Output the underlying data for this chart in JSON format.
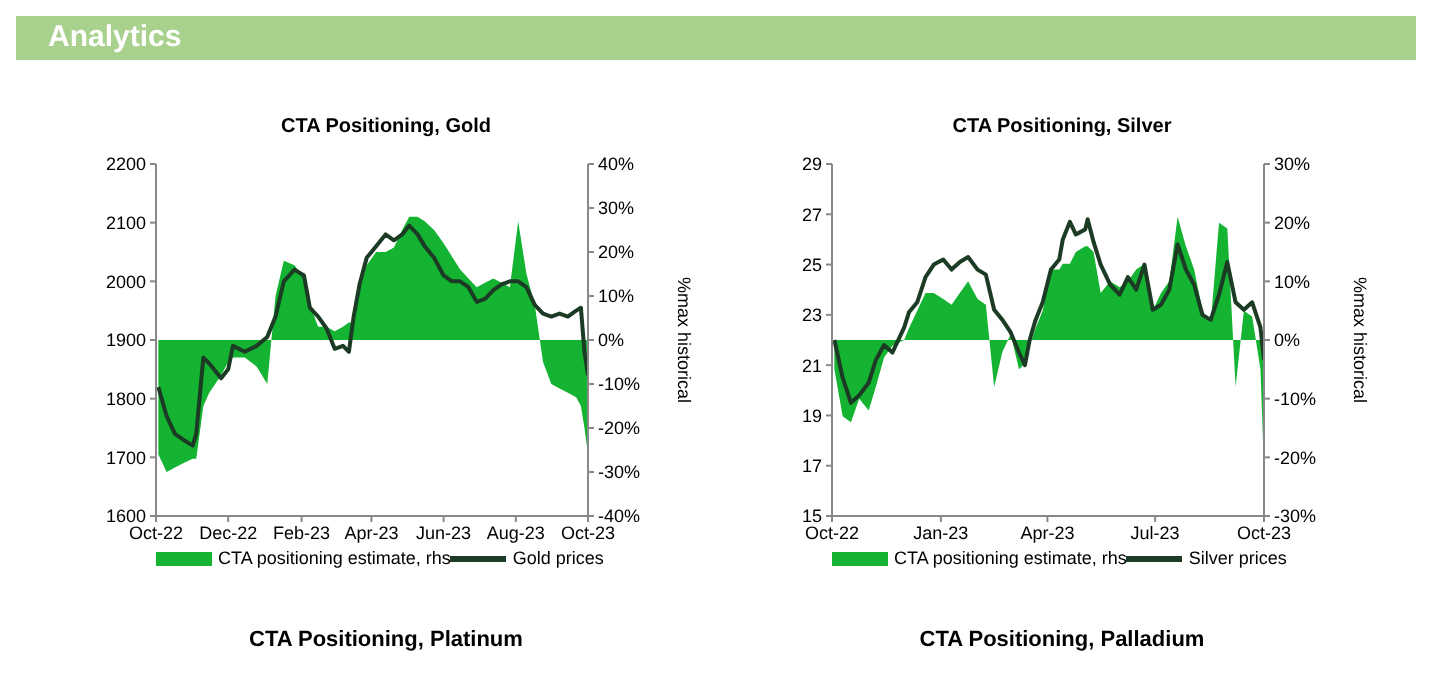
{
  "chart_data": [
    {
      "type": "other",
      "title": "Analytics"
    },
    {
      "type": "line",
      "title": "CTA Positioning, Gold",
      "y2label": "%max historical",
      "legend": "bottom",
      "marker": "none",
      "x": [
        "2022-10-03",
        "2022-10-10",
        "2022-10-17",
        "2022-10-24",
        "2022-11-01",
        "2022-11-04",
        "2022-11-10",
        "2022-11-15",
        "2022-11-25",
        "2022-12-01",
        "2022-12-05",
        "2022-12-15",
        "2022-12-25",
        "2023-01-03",
        "2023-01-10",
        "2023-01-17",
        "2023-01-26",
        "2023-02-03",
        "2023-02-08",
        "2023-02-15",
        "2023-02-22",
        "2023-03-01",
        "2023-03-08",
        "2023-03-13",
        "2023-03-17",
        "2023-03-22",
        "2023-03-28",
        "2023-04-05",
        "2023-04-13",
        "2023-04-20",
        "2023-04-27",
        "2023-05-03",
        "2023-05-10",
        "2023-05-16",
        "2023-05-24",
        "2023-06-01",
        "2023-06-08",
        "2023-06-15",
        "2023-06-22",
        "2023-06-29",
        "2023-07-06",
        "2023-07-13",
        "2023-07-20",
        "2023-07-27",
        "2023-08-03",
        "2023-08-10",
        "2023-08-17",
        "2023-08-24",
        "2023-08-31",
        "2023-09-07",
        "2023-09-14",
        "2023-09-21",
        "2023-09-25",
        "2023-09-28",
        "2023-10-01"
      ],
      "xlim": [
        "2022-10-01",
        "2023-10-01"
      ],
      "xticks": [
        {
          "value": "2022-10-01",
          "label": "Oct-22"
        },
        {
          "value": "2022-12-01",
          "label": "Dec-22"
        },
        {
          "value": "2023-02-01",
          "label": "Feb-23"
        },
        {
          "value": "2023-04-01",
          "label": "Apr-23"
        },
        {
          "value": "2023-06-01",
          "label": "Jun-23"
        },
        {
          "value": "2023-08-01",
          "label": "Aug-23"
        },
        {
          "value": "2023-10-01",
          "label": "Oct-23"
        }
      ],
      "ylim": [
        1600,
        2200
      ],
      "yticks": [
        1600,
        1700,
        1800,
        1900,
        2000,
        2100,
        2200
      ],
      "y2lim": [
        -40,
        40
      ],
      "y2ticks": [
        {
          "value": -40,
          "label": "-40%"
        },
        {
          "value": -30,
          "label": "-30%"
        },
        {
          "value": -20,
          "label": "-20%"
        },
        {
          "value": -10,
          "label": "-10%"
        },
        {
          "value": 0,
          "label": "0%"
        },
        {
          "value": 10,
          "label": "10%"
        },
        {
          "value": 20,
          "label": "20%"
        },
        {
          "value": 30,
          "label": "30%"
        },
        {
          "value": 40,
          "label": "40%"
        }
      ],
      "series": [
        {
          "name": "CTA positioning estimate, rhs",
          "type": "area",
          "axis": "y2",
          "color": "#14b331",
          "values": [
            -26,
            -30,
            -29,
            -28,
            -27,
            -27,
            -15,
            -12,
            -8,
            -5,
            -4,
            -4,
            -6,
            -10,
            10,
            18,
            17,
            14,
            8,
            3,
            3,
            2,
            3,
            4,
            4,
            12,
            17,
            20,
            20,
            21,
            25,
            28,
            28,
            27,
            25,
            22,
            19,
            16,
            14,
            12,
            13,
            14,
            13,
            12,
            27,
            15,
            8,
            -5,
            -10,
            -11,
            -12,
            -13,
            -15,
            -20,
            -26
          ]
        },
        {
          "name": "Gold prices",
          "type": "line",
          "color": "#1b3b24",
          "values": [
            1820,
            1770,
            1740,
            1730,
            1720,
            1740,
            1870,
            1860,
            1835,
            1850,
            1890,
            1880,
            1890,
            1905,
            1940,
            2000,
            2020,
            2010,
            1955,
            1940,
            1920,
            1885,
            1890,
            1880,
            1940,
            1995,
            2040,
            2060,
            2080,
            2070,
            2080,
            2095,
            2080,
            2060,
            2040,
            2010,
            2000,
            2000,
            1990,
            1965,
            1970,
            1985,
            1995,
            2000,
            2000,
            1990,
            1960,
            1945,
            1940,
            1945,
            1940,
            1950,
            1955,
            1880,
            1840
          ]
        }
      ]
    },
    {
      "type": "line",
      "title": "CTA Positioning, Silver",
      "y2label": "%max historical",
      "legend": "bottom",
      "marker": "none",
      "x": [
        "2022-10-03",
        "2022-10-10",
        "2022-10-17",
        "2022-10-24",
        "2022-11-01",
        "2022-11-07",
        "2022-11-14",
        "2022-11-21",
        "2022-12-01",
        "2022-12-05",
        "2022-12-12",
        "2022-12-19",
        "2022-12-26",
        "2023-01-03",
        "2023-01-10",
        "2023-01-17",
        "2023-01-24",
        "2023-02-01",
        "2023-02-08",
        "2023-02-15",
        "2023-02-22",
        "2023-03-01",
        "2023-03-08",
        "2023-03-13",
        "2023-03-17",
        "2023-03-22",
        "2023-03-28",
        "2023-04-04",
        "2023-04-11",
        "2023-04-14",
        "2023-04-20",
        "2023-04-25",
        "2023-05-03",
        "2023-05-05",
        "2023-05-10",
        "2023-05-16",
        "2023-05-24",
        "2023-06-01",
        "2023-06-08",
        "2023-06-15",
        "2023-06-22",
        "2023-06-29",
        "2023-07-06",
        "2023-07-13",
        "2023-07-20",
        "2023-07-27",
        "2023-08-03",
        "2023-08-10",
        "2023-08-17",
        "2023-08-24",
        "2023-08-31",
        "2023-09-07",
        "2023-09-14",
        "2023-09-21",
        "2023-09-28",
        "2023-10-01"
      ],
      "xlim": [
        "2022-10-01",
        "2023-10-01"
      ],
      "xticks": [
        {
          "value": "2022-10-01",
          "label": "Oct-22"
        },
        {
          "value": "2023-01-01",
          "label": "Jan-23"
        },
        {
          "value": "2023-04-01",
          "label": "Apr-23"
        },
        {
          "value": "2023-07-01",
          "label": "Jul-23"
        },
        {
          "value": "2023-10-01",
          "label": "Oct-23"
        }
      ],
      "ylim": [
        15,
        29
      ],
      "yticks": [
        15,
        17,
        19,
        21,
        23,
        25,
        27,
        29
      ],
      "y2lim": [
        -30,
        30
      ],
      "y2ticks": [
        {
          "value": -30,
          "label": "-30%"
        },
        {
          "value": -20,
          "label": "-20%"
        },
        {
          "value": -10,
          "label": "-10%"
        },
        {
          "value": 0,
          "label": "0%"
        },
        {
          "value": 10,
          "label": "10%"
        },
        {
          "value": 20,
          "label": "20%"
        },
        {
          "value": 30,
          "label": "30%"
        }
      ],
      "series": [
        {
          "name": "CTA positioning estimate, rhs",
          "type": "area",
          "axis": "y2",
          "color": "#14b331",
          "values": [
            -5,
            -13,
            -14,
            -10,
            -12,
            -8,
            -3,
            -1,
            0,
            2,
            5,
            8,
            8,
            7,
            6,
            8,
            10,
            7,
            6,
            -8,
            -2,
            1,
            -5,
            -4,
            -1,
            2,
            5,
            12,
            12,
            13,
            13,
            15,
            16,
            16,
            15,
            8,
            10,
            9,
            10,
            12,
            13,
            5,
            8,
            10,
            21,
            16,
            12,
            5,
            3,
            20,
            19,
            -8,
            5,
            4,
            -5,
            -22
          ]
        },
        {
          "name": "Silver prices",
          "type": "line",
          "color": "#1b3b24",
          "values": [
            22.0,
            20.5,
            19.5,
            19.8,
            20.3,
            21.2,
            21.8,
            21.5,
            22.5,
            23.1,
            23.5,
            24.5,
            25.0,
            25.2,
            24.8,
            25.1,
            25.3,
            24.8,
            24.6,
            23.2,
            22.8,
            22.3,
            21.5,
            21.0,
            22.0,
            22.8,
            23.5,
            24.8,
            25.2,
            26.0,
            26.7,
            26.2,
            26.4,
            26.8,
            25.9,
            25.0,
            24.2,
            23.8,
            24.5,
            24.0,
            25.0,
            23.2,
            23.4,
            24.0,
            25.8,
            24.8,
            24.2,
            23.0,
            22.8,
            23.8,
            25.1,
            23.5,
            23.2,
            23.5,
            22.5,
            21.2
          ]
        }
      ]
    },
    {
      "type": "other",
      "title": "CTA Positioning, Platinum"
    },
    {
      "type": "other",
      "title": "CTA Positioning, Palladium"
    }
  ]
}
